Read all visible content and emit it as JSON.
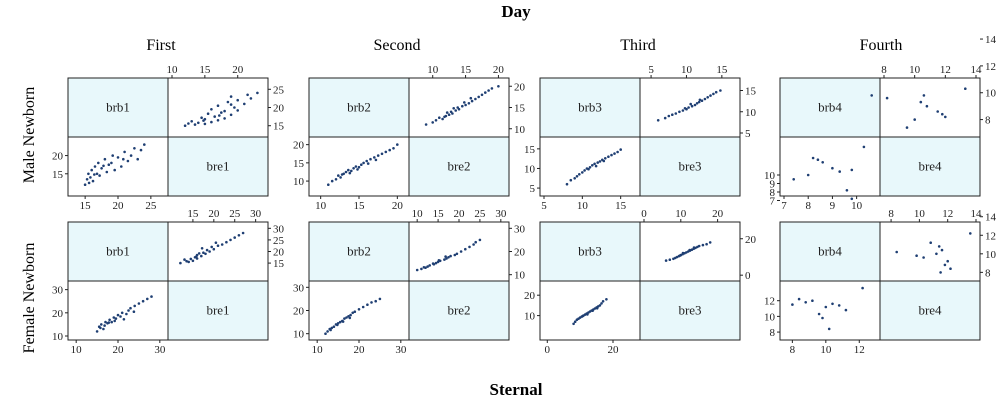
{
  "figure": {
    "top_title": "Day",
    "bottom_title": "Sternal",
    "columns": [
      "First",
      "Second",
      "Third",
      "Fourth"
    ],
    "rows": [
      "Male Newborn",
      "Female Newborn"
    ]
  },
  "colors": {
    "diag_fill": "#e8f8fb",
    "point": "#1f3f73",
    "axis": "#222222"
  },
  "chart_data": [
    {
      "type": "scatter",
      "row": "Male Newborn",
      "column": "First",
      "labels": [
        "brb1",
        "bre1"
      ],
      "ranges": {
        "brb": [
          13,
          27
        ],
        "bre": [
          10,
          24
        ]
      },
      "ticks": {
        "brb": [
          15,
          20,
          25
        ],
        "bre": [
          10,
          15,
          20
        ]
      },
      "upper_right_y_ticks": [
        15,
        20,
        25
      ],
      "lower_left_y_ticks": [
        15,
        20
      ],
      "points": [
        [
          15,
          12
        ],
        [
          15.3,
          13.5
        ],
        [
          15.5,
          15
        ],
        [
          15.8,
          14
        ],
        [
          16,
          16
        ],
        [
          16.2,
          13
        ],
        [
          16.5,
          17
        ],
        [
          16.8,
          15
        ],
        [
          17,
          18
        ],
        [
          17.2,
          14.5
        ],
        [
          17.5,
          16.5
        ],
        [
          18,
          19
        ],
        [
          18.3,
          15.5
        ],
        [
          18.6,
          17.5
        ],
        [
          19,
          18
        ],
        [
          19.5,
          16
        ],
        [
          20,
          19.5
        ],
        [
          20.5,
          17
        ],
        [
          21,
          21
        ],
        [
          21.5,
          18.5
        ],
        [
          22,
          20
        ],
        [
          22.5,
          22
        ],
        [
          23,
          19
        ],
        [
          23.5,
          21.5
        ],
        [
          24,
          23
        ],
        [
          15.6,
          12.5
        ],
        [
          16.4,
          14.8
        ],
        [
          17.8,
          17.2
        ],
        [
          19.2,
          20
        ],
        [
          20.8,
          19
        ]
      ]
    },
    {
      "type": "scatter",
      "row": "Male Newborn",
      "column": "Second",
      "labels": [
        "brb2",
        "bre2"
      ],
      "ranges": {
        "brb": [
          9,
          21
        ],
        "bre": [
          7,
          21
        ]
      },
      "ticks": {
        "brb": [
          10,
          15,
          20
        ],
        "bre": [
          10,
          15,
          20
        ]
      },
      "upper_right_y_ticks": [
        10,
        15,
        20
      ],
      "lower_left_y_ticks": [
        10,
        15,
        20
      ],
      "points": [
        [
          11,
          9
        ],
        [
          11.5,
          10
        ],
        [
          12,
          10.5
        ],
        [
          12.3,
          11.5
        ],
        [
          12.6,
          11
        ],
        [
          13,
          12
        ],
        [
          13.3,
          12.5
        ],
        [
          13.6,
          13
        ],
        [
          14,
          12.8
        ],
        [
          14.3,
          13.5
        ],
        [
          14.6,
          14
        ],
        [
          15,
          13.8
        ],
        [
          15.3,
          14.5
        ],
        [
          15.6,
          15
        ],
        [
          16,
          15.5
        ],
        [
          16.5,
          16
        ],
        [
          17,
          16.5
        ],
        [
          17.5,
          17
        ],
        [
          18,
          17.5
        ],
        [
          18.5,
          18
        ],
        [
          19,
          18.5
        ],
        [
          19.5,
          19
        ],
        [
          20,
          20
        ],
        [
          12.8,
          11.8
        ],
        [
          13.8,
          12.2
        ],
        [
          14.8,
          13.2
        ],
        [
          16.2,
          14.8
        ],
        [
          17.2,
          15.8
        ]
      ]
    },
    {
      "type": "scatter",
      "row": "Male Newborn",
      "column": "Third",
      "labels": [
        "brb3",
        "bre3"
      ],
      "ranges": {
        "brb": [
          5,
          17
        ],
        "bre": [
          4,
          17
        ]
      },
      "ticks": {
        "brb": [
          5,
          10,
          15
        ],
        "bre": [
          5,
          10,
          15
        ]
      },
      "upper_right_y_ticks": [
        5,
        10,
        15
      ],
      "lower_left_y_ticks": [
        5,
        10,
        15
      ],
      "points": [
        [
          8,
          6
        ],
        [
          8.5,
          7
        ],
        [
          9,
          7.5
        ],
        [
          9.3,
          8
        ],
        [
          9.6,
          8.5
        ],
        [
          10,
          9
        ],
        [
          10.3,
          9.5
        ],
        [
          10.6,
          10
        ],
        [
          11,
          10.3
        ],
        [
          11.3,
          10.8
        ],
        [
          11.6,
          11.2
        ],
        [
          12,
          11.5
        ],
        [
          12.3,
          11.8
        ],
        [
          12.6,
          12.2
        ],
        [
          13,
          12.6
        ],
        [
          13.4,
          13
        ],
        [
          13.8,
          13.4
        ],
        [
          14.2,
          13.8
        ],
        [
          14.6,
          14.2
        ],
        [
          15,
          14.8
        ],
        [
          10.8,
          9.8
        ],
        [
          11.8,
          10.6
        ],
        [
          12.8,
          11.9
        ]
      ]
    },
    {
      "type": "scatter",
      "row": "Male Newborn",
      "column": "Fourth",
      "labels": [
        "brb4",
        "bre4"
      ],
      "ranges": {
        "brb": [
          7,
          10.8
        ],
        "bre": [
          8,
          14
        ]
      },
      "ticks": {
        "brb": [
          7,
          8,
          9,
          10
        ],
        "bre": [
          8,
          10,
          12,
          14
        ]
      },
      "upper_right_y_ticks": [
        8,
        10,
        12,
        14
      ],
      "lower_left_y_ticks": [
        7,
        8,
        9,
        10
      ],
      "points": [
        [
          7.4,
          9.5
        ],
        [
          8.2,
          12
        ],
        [
          8.6,
          11.5
        ],
        [
          9.0,
          10.8
        ],
        [
          9.3,
          10.4
        ],
        [
          9.8,
          10.6
        ],
        [
          10.3,
          13.3
        ],
        [
          8.0,
          10.0
        ],
        [
          9.6,
          8.2
        ],
        [
          9.8,
          7.2
        ],
        [
          8.4,
          11.8
        ]
      ]
    },
    {
      "type": "scatter",
      "row": "Female Newborn",
      "column": "First",
      "labels": [
        "brb1",
        "bre1"
      ],
      "ranges": {
        "brb": [
          9,
          31
        ],
        "bre": [
          10,
          32
        ]
      },
      "ticks": {
        "brb": [
          10,
          20,
          30
        ],
        "bre": [
          15,
          20,
          25,
          30
        ]
      },
      "upper_right_y_ticks": [
        15,
        20,
        25,
        30
      ],
      "lower_left_y_ticks": [
        10,
        20,
        30
      ],
      "points": [
        [
          15,
          12
        ],
        [
          15.5,
          14
        ],
        [
          16,
          15
        ],
        [
          16.5,
          13
        ],
        [
          17,
          16
        ],
        [
          17.5,
          15.5
        ],
        [
          18,
          17
        ],
        [
          18.5,
          16
        ],
        [
          19,
          18
        ],
        [
          19.5,
          17.5
        ],
        [
          20,
          19
        ],
        [
          21,
          20
        ],
        [
          22,
          19.5
        ],
        [
          22.5,
          21
        ],
        [
          23,
          22
        ],
        [
          24,
          23
        ],
        [
          25,
          24
        ],
        [
          26,
          25
        ],
        [
          27,
          26
        ],
        [
          28,
          27
        ],
        [
          15.8,
          13.5
        ],
        [
          16.8,
          14.5
        ],
        [
          17.8,
          15.8
        ],
        [
          19.2,
          16.5
        ],
        [
          20.6,
          18.4
        ],
        [
          21.4,
          17.2
        ],
        [
          23.8,
          20.5
        ]
      ]
    },
    {
      "type": "scatter",
      "row": "Female Newborn",
      "column": "Second",
      "labels": [
        "brb2",
        "bre2"
      ],
      "ranges": {
        "brb": [
          9,
          31
        ],
        "bre": [
          9,
          31
        ]
      },
      "ticks": {
        "brb": [
          10,
          20,
          30
        ],
        "bre": [
          10,
          15,
          20,
          25,
          30
        ]
      },
      "upper_right_y_ticks": [
        10,
        20,
        30
      ],
      "lower_left_y_ticks": [
        10,
        20,
        30
      ],
      "points": [
        [
          12,
          10
        ],
        [
          12.5,
          11
        ],
        [
          13,
          12
        ],
        [
          13.5,
          12.5
        ],
        [
          14,
          13
        ],
        [
          14.5,
          14
        ],
        [
          15,
          14.5
        ],
        [
          15.5,
          15
        ],
        [
          16,
          15.5
        ],
        [
          16.5,
          16.5
        ],
        [
          17,
          17
        ],
        [
          17.5,
          17.5
        ],
        [
          18,
          18
        ],
        [
          18.5,
          19
        ],
        [
          19,
          19.5
        ],
        [
          20,
          20.5
        ],
        [
          21,
          21.5
        ],
        [
          22,
          22.5
        ],
        [
          23,
          23.5
        ],
        [
          24,
          24
        ],
        [
          25,
          25
        ],
        [
          13.2,
          11.6
        ],
        [
          14.8,
          13.8
        ],
        [
          16.2,
          15.2
        ],
        [
          17.8,
          16.8
        ]
      ]
    },
    {
      "type": "scatter",
      "row": "Female Newborn",
      "column": "Third",
      "labels": [
        "brb3",
        "bre3"
      ],
      "ranges": {
        "brb": [
          -1,
          27
        ],
        "bre": [
          0,
          25
        ]
      },
      "ticks": {
        "brb": [
          0,
          20
        ],
        "bre": [
          0,
          10,
          20
        ]
      },
      "upper_right_y_ticks": [
        0,
        20
      ],
      "lower_left_y_ticks": [
        10,
        20
      ],
      "points": [
        [
          8,
          6
        ],
        [
          8.5,
          7
        ],
        [
          9,
          8
        ],
        [
          9.5,
          8.5
        ],
        [
          10,
          9
        ],
        [
          10.5,
          9.5
        ],
        [
          11,
          10
        ],
        [
          11.5,
          10.5
        ],
        [
          12,
          11
        ],
        [
          12.5,
          11.5
        ],
        [
          13,
          12
        ],
        [
          13.5,
          12.5
        ],
        [
          14,
          13
        ],
        [
          14.5,
          13.5
        ],
        [
          15,
          14
        ],
        [
          15.5,
          14.5
        ],
        [
          16,
          15
        ],
        [
          16.5,
          16
        ],
        [
          17,
          17
        ],
        [
          18,
          18
        ],
        [
          10.8,
          9.8
        ],
        [
          12.2,
          10.6
        ],
        [
          13.8,
          12.4
        ],
        [
          15.2,
          13.6
        ]
      ]
    },
    {
      "type": "scatter",
      "row": "Female Newborn",
      "column": "Fourth",
      "labels": [
        "brb4",
        "bre4"
      ],
      "ranges": {
        "brb": [
          7.5,
          13
        ],
        "bre": [
          7.5,
          14
        ]
      },
      "ticks": {
        "brb": [
          8,
          10,
          12
        ],
        "bre": [
          8,
          10,
          12,
          14
        ]
      },
      "upper_right_y_ticks": [
        8,
        10,
        12,
        14
      ],
      "lower_left_y_ticks": [
        8,
        10,
        12
      ],
      "points": [
        [
          8,
          11.5
        ],
        [
          8.4,
          12.2
        ],
        [
          8.8,
          11.8
        ],
        [
          9.2,
          12
        ],
        [
          9.6,
          10.3
        ],
        [
          10,
          11.2
        ],
        [
          10.4,
          11.6
        ],
        [
          10.8,
          11.4
        ],
        [
          11.2,
          10.8
        ],
        [
          12.2,
          13.6
        ],
        [
          9.8,
          9.8
        ],
        [
          10.2,
          8.4
        ]
      ]
    }
  ]
}
